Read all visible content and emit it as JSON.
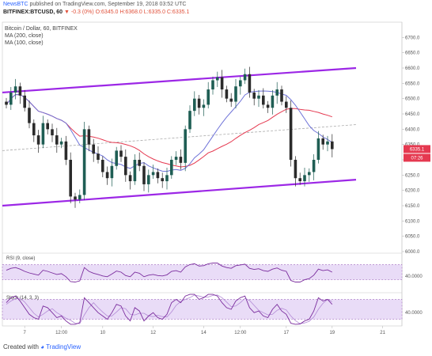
{
  "header": {
    "author": "NewsBTC",
    "published": "published on TradingView.com, September 19, 2018 03:52 UTC",
    "symbol": "BITFINEX:BTCUSD, 60",
    "change": "▼ -0.3 (0%)",
    "ohlc": "O:6345.0 H:6368.0 L:6335.0 C:6335.1"
  },
  "legend": {
    "title": "Bitcoin / Dollar, 60, BITFINEX",
    "ma200": "MA (200, close)",
    "ma100": "MA (100, close)"
  },
  "price_tags": {
    "last": "6335.1",
    "countdown": "07:26"
  },
  "footer": {
    "created_with": "Created with",
    "brand": "TradingView"
  },
  "colors": {
    "channel": "#9c27e6",
    "ma200": "#e53950",
    "ma100": "#6f73d8",
    "bull": "#1f5e54",
    "bear": "#2b2b2b",
    "rsi": "#7b2d9e",
    "stoch": "#7b2d9e",
    "panel_fill": "#e9dcf7",
    "midline": "#aaaaaa"
  },
  "chart_data": [
    {
      "type": "candlestick",
      "title": "Bitcoin / Dollar, 60, BITFINEX",
      "ylim": [
        6000,
        6750
      ],
      "y_ticks": [
        6000,
        6050,
        6100,
        6150,
        6200,
        6250,
        6300,
        6350,
        6400,
        6450,
        6500,
        6550,
        6600,
        6650,
        6700
      ],
      "x_tick_labels": [
        "7",
        "12:00",
        "10",
        "12",
        "14",
        "12:00",
        "17",
        "19",
        "21"
      ],
      "close_approx": [
        6480,
        6520,
        6540,
        6510,
        6470,
        6420,
        6380,
        6350,
        6420,
        6400,
        6380,
        6350,
        6360,
        6300,
        6180,
        6170,
        6185,
        6400,
        6350,
        6320,
        6300,
        6260,
        6240,
        6280,
        6330,
        6310,
        6250,
        6230,
        6300,
        6280,
        6220,
        6250,
        6260,
        6240,
        6230,
        6250,
        6300,
        6310,
        6290,
        6400,
        6460,
        6500,
        6470,
        6480,
        6530,
        6560,
        6570,
        6530,
        6500,
        6490,
        6540,
        6560,
        6580,
        6520,
        6500,
        6510,
        6480,
        6470,
        6510,
        6530,
        6490,
        6470,
        6300,
        6240,
        6230,
        6250,
        6260,
        6300,
        6370,
        6350,
        6360,
        6335
      ],
      "ma200": {
        "name": "MA (200, close)"
      },
      "ma100": {
        "name": "MA (100, close)"
      },
      "annotations": [
        "ascending channel: upper and lower trendlines",
        "dashed channel midline"
      ],
      "last_price": 6335.1
    },
    {
      "type": "line",
      "title": "RSI (9, close)",
      "ylim": [
        0,
        100
      ],
      "y_ticks": [
        40
      ],
      "y_tick_labels": [
        "40.0000"
      ],
      "band": [
        30,
        70
      ],
      "values": [
        55,
        60,
        62,
        58,
        52,
        48,
        45,
        42,
        55,
        52,
        48,
        44,
        46,
        38,
        25,
        24,
        27,
        62,
        52,
        47,
        44,
        40,
        38,
        45,
        53,
        50,
        41,
        38,
        50,
        47,
        38,
        42,
        44,
        41,
        40,
        43,
        52,
        54,
        50,
        64,
        70,
        72,
        66,
        67,
        72,
        74,
        74,
        66,
        62,
        60,
        67,
        69,
        71,
        60,
        57,
        59,
        54,
        52,
        58,
        61,
        55,
        52,
        28,
        24,
        24,
        30,
        33,
        42,
        58,
        54,
        56,
        50
      ]
    },
    {
      "type": "line",
      "title": "Stoch (14, 3, 3)",
      "ylim": [
        0,
        100
      ],
      "y_ticks": [
        40
      ],
      "y_tick_labels": [
        "40.0000"
      ],
      "band": [
        20,
        80
      ],
      "k_values": [
        70,
        85,
        90,
        75,
        55,
        35,
        25,
        20,
        60,
        55,
        40,
        25,
        30,
        15,
        5,
        5,
        10,
        85,
        70,
        55,
        40,
        30,
        20,
        40,
        65,
        60,
        30,
        15,
        55,
        45,
        15,
        30,
        40,
        25,
        20,
        35,
        70,
        80,
        70,
        90,
        95,
        95,
        80,
        85,
        95,
        95,
        90,
        70,
        55,
        50,
        75,
        85,
        90,
        55,
        40,
        45,
        30,
        25,
        50,
        65,
        45,
        35,
        8,
        5,
        6,
        15,
        20,
        45,
        85,
        75,
        80,
        65
      ],
      "d_values": [
        65,
        75,
        82,
        83,
        72,
        55,
        38,
        27,
        35,
        45,
        52,
        40,
        32,
        23,
        17,
        8,
        7,
        33,
        55,
        70,
        55,
        42,
        30,
        30,
        42,
        55,
        52,
        35,
        33,
        38,
        38,
        30,
        28,
        32,
        28,
        27,
        42,
        62,
        73,
        80,
        85,
        93,
        90,
        87,
        87,
        92,
        93,
        85,
        72,
        58,
        60,
        70,
        83,
        77,
        62,
        47,
        40,
        33,
        35,
        47,
        53,
        48,
        30,
        16,
        7,
        9,
        14,
        27,
        50,
        68,
        80,
        73
      ]
    }
  ]
}
